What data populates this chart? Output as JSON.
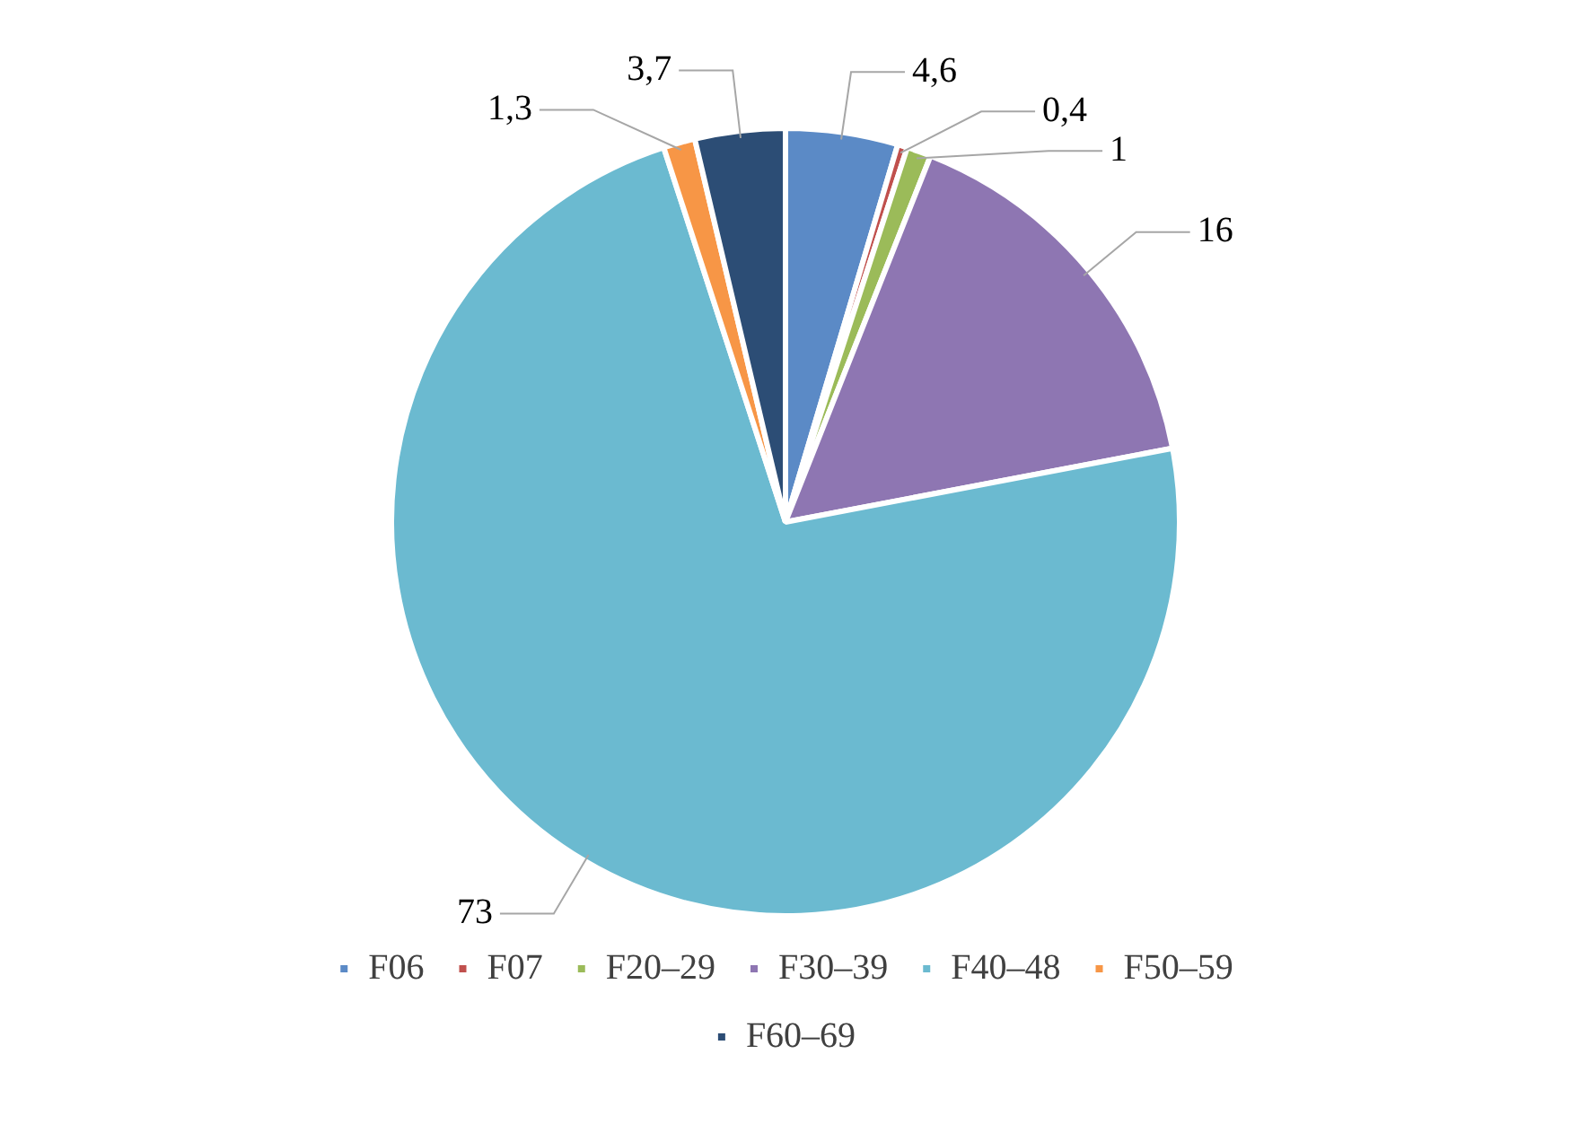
{
  "chart_data": {
    "type": "pie",
    "categories": [
      "F06",
      "F07",
      "F20–29",
      "F30–39",
      "F40–48",
      "F50–59",
      "F60–69"
    ],
    "values": [
      4.6,
      0.4,
      1,
      16,
      73,
      1.3,
      3.7
    ],
    "value_labels": [
      "4,6",
      "0,4",
      "1",
      "16",
      "73",
      "1,3",
      "3,7"
    ],
    "colors": [
      "#5b8ac6",
      "#c0504d",
      "#9bbb59",
      "#8e76b2",
      "#6bbad0",
      "#f79646",
      "#2c4d75"
    ],
    "legend": "bottom"
  }
}
